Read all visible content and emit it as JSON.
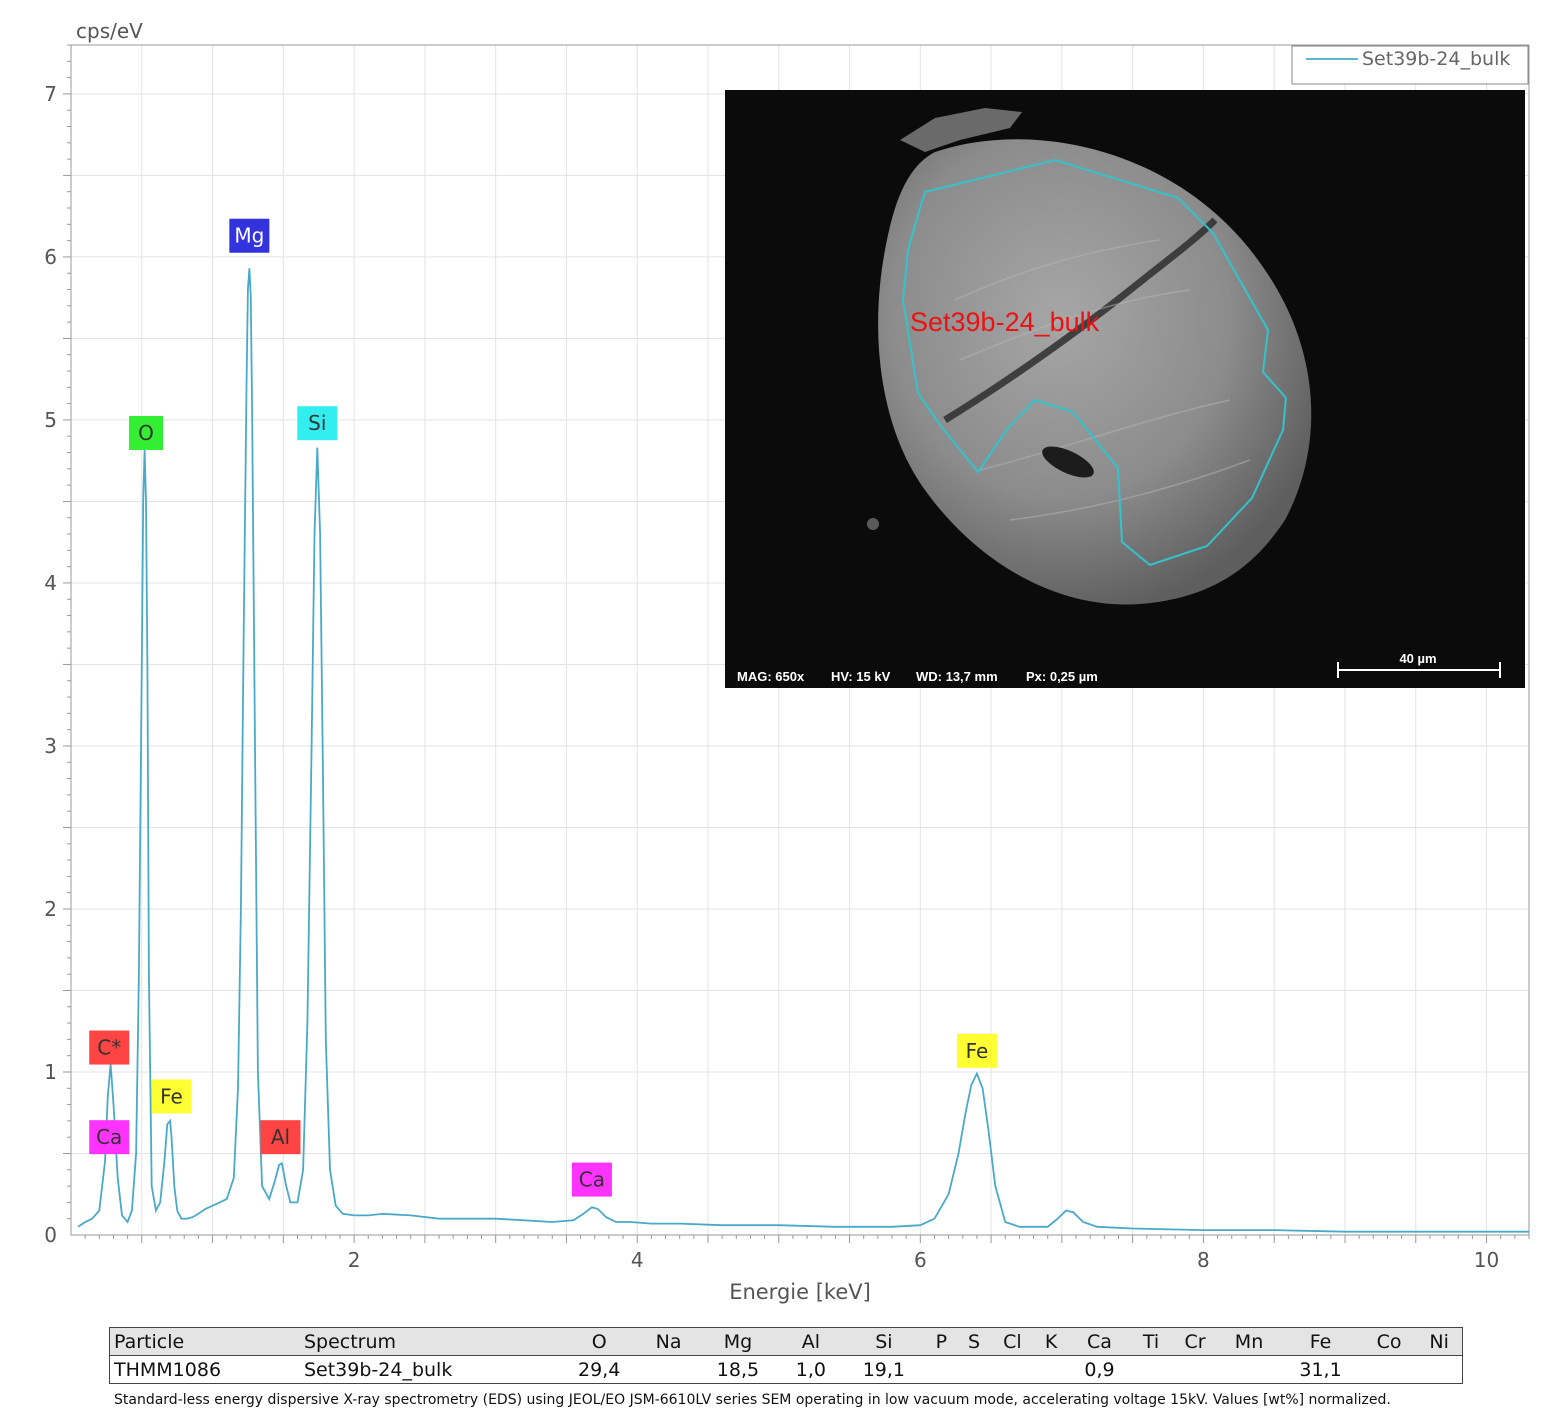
{
  "chart_data": {
    "type": "line",
    "ylabel": "cps/eV",
    "xlabel": "Energie [keV]",
    "xlim": [
      0,
      10.3
    ],
    "ylim": [
      0,
      7.3
    ],
    "x_ticks": [
      2,
      4,
      6,
      8,
      10
    ],
    "y_ticks": [
      0,
      1,
      2,
      3,
      4,
      5,
      6,
      7
    ],
    "grid": true,
    "legend_position": "top-right",
    "series": [
      {
        "name": "Set39b-24_bulk",
        "color": "#4aa9c9",
        "x": [
          0.05,
          0.1,
          0.15,
          0.2,
          0.24,
          0.26,
          0.28,
          0.3,
          0.33,
          0.36,
          0.4,
          0.43,
          0.46,
          0.48,
          0.5,
          0.51,
          0.52,
          0.53,
          0.54,
          0.55,
          0.57,
          0.6,
          0.63,
          0.66,
          0.68,
          0.7,
          0.71,
          0.72,
          0.73,
          0.75,
          0.78,
          0.82,
          0.86,
          0.9,
          0.95,
          1.0,
          1.05,
          1.1,
          1.15,
          1.18,
          1.2,
          1.22,
          1.24,
          1.25,
          1.26,
          1.27,
          1.28,
          1.3,
          1.32,
          1.35,
          1.4,
          1.44,
          1.47,
          1.49,
          1.52,
          1.55,
          1.6,
          1.64,
          1.67,
          1.7,
          1.72,
          1.74,
          1.76,
          1.78,
          1.8,
          1.83,
          1.87,
          1.92,
          2.0,
          2.1,
          2.2,
          2.4,
          2.6,
          2.8,
          3.0,
          3.2,
          3.4,
          3.55,
          3.62,
          3.68,
          3.72,
          3.78,
          3.85,
          3.95,
          4.1,
          4.3,
          4.6,
          5.0,
          5.4,
          5.8,
          6.0,
          6.1,
          6.2,
          6.27,
          6.32,
          6.36,
          6.4,
          6.44,
          6.48,
          6.53,
          6.6,
          6.7,
          6.8,
          6.9,
          6.97,
          7.03,
          7.08,
          7.15,
          7.25,
          7.5,
          8.0,
          8.5,
          9.0,
          9.5,
          10.0,
          10.3
        ],
        "y": [
          0.05,
          0.08,
          0.1,
          0.15,
          0.45,
          0.85,
          1.05,
          0.8,
          0.35,
          0.12,
          0.08,
          0.15,
          0.5,
          1.6,
          3.5,
          4.5,
          4.82,
          4.5,
          3.5,
          1.6,
          0.3,
          0.15,
          0.2,
          0.45,
          0.68,
          0.7,
          0.6,
          0.45,
          0.3,
          0.15,
          0.1,
          0.1,
          0.11,
          0.13,
          0.16,
          0.18,
          0.2,
          0.22,
          0.35,
          0.9,
          2.0,
          3.7,
          5.2,
          5.8,
          5.93,
          5.75,
          5.0,
          3.0,
          1.0,
          0.3,
          0.22,
          0.33,
          0.43,
          0.44,
          0.3,
          0.2,
          0.2,
          0.4,
          1.3,
          3.0,
          4.3,
          4.83,
          4.3,
          2.8,
          1.2,
          0.4,
          0.18,
          0.13,
          0.12,
          0.12,
          0.13,
          0.12,
          0.1,
          0.1,
          0.1,
          0.09,
          0.08,
          0.09,
          0.13,
          0.17,
          0.16,
          0.11,
          0.08,
          0.08,
          0.07,
          0.07,
          0.06,
          0.06,
          0.05,
          0.05,
          0.06,
          0.1,
          0.25,
          0.5,
          0.75,
          0.92,
          0.99,
          0.9,
          0.65,
          0.3,
          0.08,
          0.05,
          0.05,
          0.05,
          0.1,
          0.15,
          0.14,
          0.08,
          0.05,
          0.04,
          0.03,
          0.03,
          0.02,
          0.02,
          0.02,
          0.02
        ]
      }
    ],
    "peak_labels": [
      {
        "text": "C*",
        "x": 0.27,
        "y": 1.15,
        "bg": "#ff4444",
        "fg": "#333333"
      },
      {
        "text": "Ca",
        "x": 0.27,
        "y": 0.6,
        "bg": "#ff33ff",
        "fg": "#333333"
      },
      {
        "text": "O",
        "x": 0.53,
        "y": 4.92,
        "bg": "#33ee33",
        "fg": "#333333"
      },
      {
        "text": "Fe",
        "x": 0.71,
        "y": 0.85,
        "bg": "#ffff33",
        "fg": "#333333"
      },
      {
        "text": "Mg",
        "x": 1.26,
        "y": 6.13,
        "bg": "#3333dd",
        "fg": "#ffffff"
      },
      {
        "text": "Al",
        "x": 1.48,
        "y": 0.6,
        "bg": "#ff4444",
        "fg": "#333333"
      },
      {
        "text": "Si",
        "x": 1.74,
        "y": 4.98,
        "bg": "#33eeee",
        "fg": "#333333"
      },
      {
        "text": "Ca",
        "x": 3.68,
        "y": 0.34,
        "bg": "#ff33ff",
        "fg": "#333333"
      },
      {
        "text": "Fe",
        "x": 6.4,
        "y": 1.13,
        "bg": "#ffff33",
        "fg": "#333333"
      }
    ]
  },
  "inset": {
    "region_label": "Set39b-24_bulk",
    "info_mag": "MAG: 650x",
    "info_hv": "HV: 15 kV",
    "info_wd": "WD: 13,7 mm",
    "info_px": "Px: 0,25 µm",
    "scale_bar": "40 µm"
  },
  "table": {
    "headers": [
      "Particle",
      "Spectrum",
      "O",
      "Na",
      "Mg",
      "Al",
      "Si",
      "P",
      "S",
      "Cl",
      "K",
      "Ca",
      "Ti",
      "Cr",
      "Mn",
      "Fe",
      "Co",
      "Ni"
    ],
    "rows": [
      [
        "THMM1086",
        "Set39b-24_bulk",
        "29,4",
        "",
        "18,5",
        "1,0",
        "19,1",
        "",
        "",
        "",
        "",
        "0,9",
        "",
        "",
        "",
        "31,1",
        "",
        ""
      ]
    ]
  },
  "footnote": "Standard-less energy dispersive X-ray spectrometry (EDS) using JEOL/EO JSM-6610LV series SEM operating in low vacuum mode, accelerating voltage 15kV. Values [wt%] normalized."
}
